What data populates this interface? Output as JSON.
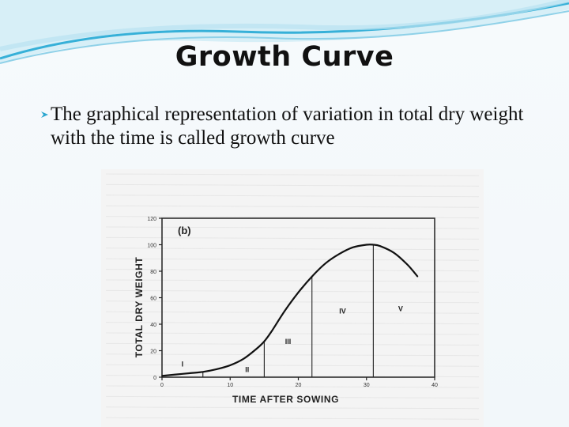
{
  "slide": {
    "title": "Growth Curve",
    "bullet": {
      "icon": "bullet-arrow-icon",
      "text": "The graphical representation of variation in total dry weight with the time is called growth curve"
    },
    "theme_colors": {
      "accent": "#2aa6cf",
      "title": "#111111",
      "text": "#111111"
    }
  },
  "chart_data": {
    "type": "line",
    "panel_label": "(b)",
    "xlabel": "TIME AFTER SOWING",
    "ylabel": "TOTAL DRY WEIGHT",
    "xlim": [
      0,
      40
    ],
    "ylim": [
      0,
      120
    ],
    "x_ticks": [
      0,
      10,
      20,
      30,
      40
    ],
    "y_ticks": [
      0,
      20,
      40,
      60,
      80,
      100,
      120
    ],
    "phase_boundaries_x": [
      6,
      15,
      22,
      31
    ],
    "phase_labels": [
      {
        "text": "I",
        "x": 3,
        "y": 8
      },
      {
        "text": "II",
        "x": 12.5,
        "y": 4
      },
      {
        "text": "III",
        "x": 18.5,
        "y": 25
      },
      {
        "text": "IV",
        "x": 26.5,
        "y": 48
      },
      {
        "text": "V",
        "x": 35,
        "y": 50
      }
    ],
    "series": [
      {
        "x": [
          0,
          2,
          4,
          6,
          8,
          10,
          12,
          14,
          15,
          16,
          18,
          20,
          22,
          24,
          26,
          28,
          30,
          31,
          32,
          34,
          36,
          37.5
        ],
        "values": [
          1,
          2,
          3,
          4,
          6,
          9,
          14,
          22,
          27,
          34,
          50,
          64,
          76,
          86,
          93,
          98,
          100,
          100,
          99,
          94,
          85,
          76
        ]
      }
    ]
  }
}
